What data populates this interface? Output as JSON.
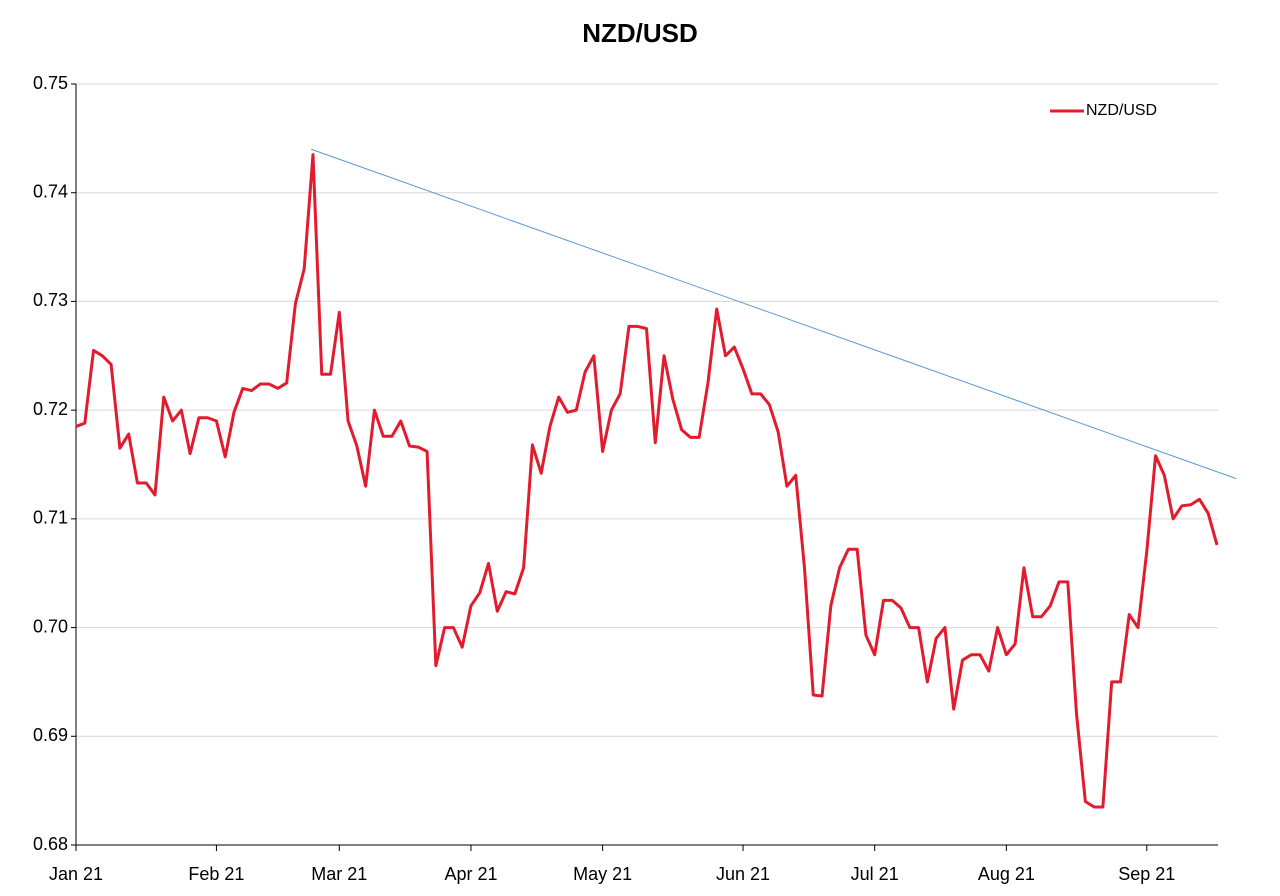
{
  "chart_data": {
    "type": "line",
    "title": "NZD/USD",
    "categories": [
      "Jan 21",
      null,
      null,
      null,
      null,
      null,
      null,
      null,
      null,
      null,
      null,
      null,
      null,
      null,
      null,
      null,
      "Feb 21",
      null,
      null,
      null,
      null,
      null,
      null,
      null,
      null,
      null,
      null,
      null,
      null,
      null,
      "Mar 21",
      null,
      null,
      null,
      null,
      null,
      null,
      null,
      null,
      null,
      null,
      null,
      null,
      null,
      null,
      "Apr 21",
      null,
      null,
      null,
      null,
      null,
      null,
      null,
      null,
      null,
      null,
      null,
      null,
      null,
      null,
      "May 21",
      null,
      null,
      null,
      null,
      null,
      null,
      null,
      null,
      null,
      null,
      null,
      null,
      null,
      null,
      null,
      "Jun 21",
      null,
      null,
      null,
      null,
      null,
      null,
      null,
      null,
      null,
      null,
      null,
      null,
      null,
      null,
      "Jul 21",
      null,
      null,
      null,
      null,
      null,
      null,
      null,
      null,
      null,
      null,
      null,
      null,
      null,
      null,
      "Aug 21",
      null,
      null,
      null,
      null,
      null,
      null,
      null,
      null,
      null,
      null,
      null,
      null,
      null,
      null,
      null,
      "Sep 21",
      null,
      null,
      null,
      null,
      null,
      null,
      null,
      null
    ],
    "series": [
      {
        "name": "NZD/USD",
        "color": "#e31b2e",
        "values": [
          0.7185,
          0.7188,
          0.7255,
          0.725,
          0.7242,
          0.7165,
          0.7178,
          0.7133,
          0.7133,
          0.7122,
          0.7212,
          0.719,
          0.72,
          0.716,
          0.7193,
          0.7193,
          0.719,
          0.7157,
          0.7198,
          0.722,
          0.7218,
          0.7224,
          0.7224,
          0.722,
          0.7225,
          0.7298,
          0.733,
          0.7435,
          0.7233,
          0.7233,
          0.729,
          0.719,
          0.7167,
          0.713,
          0.72,
          0.7176,
          0.7176,
          0.719,
          0.7167,
          0.7166,
          0.7162,
          0.6965,
          0.7,
          0.7,
          0.6982,
          0.702,
          0.7032,
          0.7059,
          0.7015,
          0.7033,
          0.7031,
          0.7055,
          0.7168,
          0.7142,
          0.7185,
          0.7212,
          0.7198,
          0.72,
          0.7235,
          0.725,
          0.7162,
          0.72,
          0.7215,
          0.7277,
          0.7277,
          0.7275,
          0.717,
          0.725,
          0.721,
          0.7182,
          0.7175,
          0.7175,
          0.7225,
          0.7293,
          0.725,
          0.7258,
          0.7238,
          0.7215,
          0.7215,
          0.7205,
          0.718,
          0.713,
          0.714,
          0.7055,
          0.6938,
          0.6937,
          0.702,
          0.7055,
          0.7072,
          0.7072,
          0.6993,
          0.6975,
          0.7025,
          0.7025,
          0.7018,
          0.7,
          0.7,
          0.695,
          0.699,
          0.7,
          0.6925,
          0.697,
          0.6975,
          0.6975,
          0.696,
          0.7,
          0.6975,
          0.6985,
          0.7055,
          0.701,
          0.701,
          0.702,
          0.7042,
          0.7042,
          0.692,
          0.684,
          0.6835,
          0.6835,
          0.695,
          0.695,
          0.7012,
          0.7,
          0.707,
          0.7158,
          0.714,
          0.71,
          0.7112,
          0.7113,
          0.7118,
          0.7105,
          0.7076
        ]
      }
    ],
    "trendline": {
      "x": [
        26.8,
        132.2
      ],
      "y": [
        0.744,
        0.7137
      ],
      "color": "#5b9bd5"
    },
    "ylim": [
      0.68,
      0.75
    ],
    "yticks": [
      0.68,
      0.69,
      {
        "value": 0.7,
        "label": "0.70"
      },
      0.71,
      0.72,
      0.73,
      0.74,
      0.75
    ],
    "grid": true,
    "legend": "upper right"
  }
}
